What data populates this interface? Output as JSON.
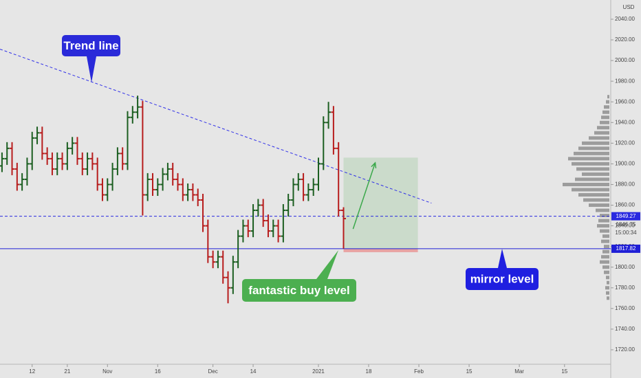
{
  "chart_data": {
    "type": "ohlc",
    "currency": "USD",
    "x": [
      0,
      1,
      2,
      3,
      4,
      5,
      6,
      7,
      8,
      9,
      10,
      11,
      12,
      13,
      14,
      15,
      16,
      17,
      18,
      19,
      20,
      21,
      22,
      23,
      24,
      25,
      26,
      27,
      28,
      29,
      30,
      31,
      32,
      33,
      34,
      35,
      36,
      37,
      38,
      39,
      40,
      41,
      42,
      43,
      44,
      45,
      46,
      47,
      48,
      49,
      50,
      51,
      52,
      53,
      54,
      55,
      56,
      57,
      58,
      59,
      60,
      61,
      62,
      63,
      64,
      65,
      66,
      67,
      68
    ],
    "open": [
      1898,
      1905,
      1915,
      1895,
      1880,
      1885,
      1900,
      1925,
      1930,
      1910,
      1905,
      1895,
      1905,
      1900,
      1915,
      1920,
      1905,
      1895,
      1905,
      1900,
      1880,
      1870,
      1880,
      1895,
      1910,
      1900,
      1945,
      1950,
      1955,
      1870,
      1885,
      1875,
      1880,
      1890,
      1895,
      1885,
      1880,
      1870,
      1875,
      1870,
      1865,
      1840,
      1810,
      1805,
      1810,
      1790,
      1780,
      1805,
      1830,
      1840,
      1835,
      1855,
      1860,
      1845,
      1835,
      1840,
      1830,
      1855,
      1865,
      1880,
      1885,
      1870,
      1875,
      1880,
      1900,
      1940,
      1950,
      1915,
      1855
    ],
    "high": [
      1911,
      1921,
      1921,
      1901,
      1891,
      1906,
      1931,
      1936,
      1936,
      1916,
      1911,
      1911,
      1911,
      1921,
      1926,
      1926,
      1911,
      1911,
      1911,
      1906,
      1886,
      1886,
      1901,
      1916,
      1916,
      1951,
      1956,
      1966,
      1961,
      1891,
      1891,
      1886,
      1896,
      1901,
      1901,
      1891,
      1886,
      1881,
      1881,
      1876,
      1871,
      1846,
      1816,
      1816,
      1816,
      1796,
      1811,
      1836,
      1846,
      1846,
      1861,
      1866,
      1866,
      1851,
      1846,
      1846,
      1861,
      1871,
      1886,
      1891,
      1891,
      1881,
      1886,
      1906,
      1946,
      1960,
      1956,
      1921,
      1858
    ],
    "low": [
      1892,
      1899,
      1889,
      1874,
      1874,
      1879,
      1894,
      1919,
      1904,
      1899,
      1889,
      1889,
      1894,
      1894,
      1909,
      1899,
      1889,
      1889,
      1894,
      1874,
      1864,
      1864,
      1874,
      1889,
      1894,
      1894,
      1939,
      1944,
      1850,
      1864,
      1869,
      1869,
      1874,
      1884,
      1879,
      1874,
      1864,
      1864,
      1864,
      1859,
      1834,
      1804,
      1799,
      1799,
      1784,
      1765,
      1774,
      1799,
      1824,
      1829,
      1829,
      1849,
      1839,
      1829,
      1829,
      1824,
      1824,
      1849,
      1859,
      1874,
      1864,
      1864,
      1869,
      1874,
      1894,
      1934,
      1909,
      1849,
      1818
    ],
    "close": [
      1905,
      1915,
      1895,
      1880,
      1885,
      1900,
      1925,
      1930,
      1910,
      1905,
      1895,
      1905,
      1900,
      1915,
      1920,
      1905,
      1895,
      1905,
      1900,
      1880,
      1870,
      1880,
      1895,
      1910,
      1900,
      1945,
      1950,
      1955,
      1870,
      1885,
      1875,
      1880,
      1890,
      1895,
      1885,
      1880,
      1870,
      1875,
      1870,
      1865,
      1840,
      1810,
      1805,
      1810,
      1790,
      1780,
      1805,
      1830,
      1840,
      1835,
      1855,
      1860,
      1845,
      1835,
      1840,
      1830,
      1855,
      1865,
      1880,
      1885,
      1870,
      1875,
      1880,
      1900,
      1940,
      1950,
      1915,
      1855,
      1847
    ],
    "up_color": "#1b5e20",
    "down_color": "#b71c1c",
    "xlim": [
      -0.4,
      121.2
    ],
    "xticks": [
      {
        "value": 6,
        "label": "12"
      },
      {
        "value": 13,
        "label": "21"
      },
      {
        "value": 21,
        "label": "Nov"
      },
      {
        "value": 31,
        "label": "16"
      },
      {
        "value": 42,
        "label": "Dec"
      },
      {
        "value": 50,
        "label": "14"
      },
      {
        "value": 63,
        "label": "2021"
      },
      {
        "value": 73,
        "label": "18"
      },
      {
        "value": 83,
        "label": "Feb"
      },
      {
        "value": 93,
        "label": "15"
      },
      {
        "value": 103,
        "label": "Mar"
      },
      {
        "value": 112,
        "label": "15"
      }
    ],
    "ylim": [
      1706,
      2058.6
    ],
    "yticks": [
      {
        "value": 1720,
        "label": "1720.00"
      },
      {
        "value": 1740,
        "label": "1740.00"
      },
      {
        "value": 1760,
        "label": "1760.00"
      },
      {
        "value": 1780,
        "label": "1780.00"
      },
      {
        "value": 1800,
        "label": "1800.00"
      },
      {
        "value": 1820,
        "label": "1820.00"
      },
      {
        "value": 1840,
        "label": "1840.00"
      },
      {
        "value": 1860,
        "label": "1860.00"
      },
      {
        "value": 1880,
        "label": "1880.00"
      },
      {
        "value": 1900,
        "label": "1900.00"
      },
      {
        "value": 1920,
        "label": "1920.00"
      },
      {
        "value": 1940,
        "label": "1940.00"
      },
      {
        "value": 1960,
        "label": "1960.00"
      },
      {
        "value": 1980,
        "label": "1980.00"
      },
      {
        "value": 2000,
        "label": "2000.00"
      },
      {
        "value": 2020,
        "label": "2020.00"
      },
      {
        "value": 2040,
        "label": "2040.00"
      }
    ],
    "hlines": [
      {
        "value": 1849.27,
        "style": "dashed",
        "color": "#2929e0"
      },
      {
        "value": 1817.82,
        "style": "solid",
        "color": "#1f1fd6"
      }
    ],
    "last_price": 1846.75,
    "countdown": "15:00:34",
    "trend_line": {
      "x": [
        -0.4,
        85.5
      ],
      "y": [
        2011,
        1862
      ],
      "color": "#2f2fe8"
    },
    "position": {
      "x": [
        68,
        82.8
      ],
      "target": 1906,
      "stop": 1814.5
    },
    "arrow": {
      "x": [
        69.9,
        74.3
      ],
      "y": [
        1837,
        1901
      ],
      "color": "#3aa84a"
    },
    "callouts": [
      {
        "text": "Trend line",
        "color": "#2a2ad9"
      },
      {
        "text": "fantastic buy level",
        "color": "#4caf50"
      },
      {
        "text": "mirror level",
        "color": "#1f1fe0"
      }
    ],
    "volume_profile": {
      "prices": [
        1770,
        1775,
        1780,
        1785,
        1790,
        1795,
        1800,
        1805,
        1810,
        1815,
        1820,
        1825,
        1830,
        1835,
        1840,
        1845,
        1850,
        1855,
        1860,
        1865,
        1870,
        1875,
        1880,
        1885,
        1890,
        1895,
        1900,
        1905,
        1910,
        1915,
        1920,
        1925,
        1930,
        1935,
        1940,
        1945,
        1950,
        1955,
        1960,
        1965
      ],
      "values": [
        4,
        5,
        6,
        4,
        5,
        8,
        10,
        14,
        12,
        10,
        8,
        12,
        10,
        14,
        18,
        16,
        14,
        20,
        30,
        38,
        45,
        55,
        68,
        50,
        40,
        48,
        55,
        60,
        52,
        45,
        40,
        30,
        22,
        18,
        14,
        12,
        10,
        8,
        5,
        3
      ],
      "color": "#8a8a8a"
    }
  }
}
